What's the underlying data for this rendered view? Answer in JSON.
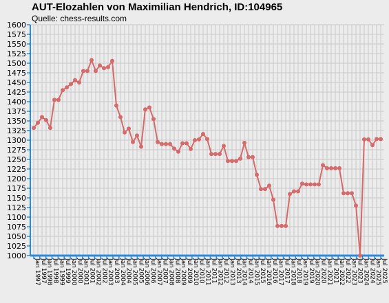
{
  "title": "AUT-Elozahlen von Maximilian Hendrich, ID:104965",
  "subtitle": "Quelle: chess-results.com",
  "colors": {
    "background": "#ececec",
    "grid": "#c8c8c8",
    "axis": "#2a8ae0",
    "series": "#d46a6a"
  },
  "chart_data": {
    "type": "line",
    "title": "AUT-Elozahlen von Maximilian Hendrich, ID:104965",
    "subtitle": "Quelle: chess-results.com",
    "xlabel": "",
    "ylabel": "",
    "ylim": [
      1000,
      1600
    ],
    "y_ticks": [
      1000,
      1025,
      1050,
      1075,
      1100,
      1125,
      1150,
      1175,
      1200,
      1225,
      1250,
      1275,
      1300,
      1325,
      1350,
      1375,
      1400,
      1425,
      1450,
      1475,
      1500,
      1525,
      1550,
      1575,
      1600
    ],
    "grid": true,
    "legend": "none",
    "x_tick_labels": [
      "Jan 1997",
      "Jul 1997",
      "Jan 1998",
      "Jul 1998",
      "Jan 1999",
      "Jul 1999",
      "Jan 2000",
      "Jul 2000",
      "Jan 2001",
      "Jul 2001",
      "Jan 2002",
      "Jul 2002",
      "Jan 2003",
      "Jul 2003",
      "Jan 2004",
      "Jul 2004",
      "Jan 2005",
      "Jul 2005",
      "Jan 2006",
      "Jul 2006",
      "Jan 2007",
      "Jul 2007",
      "Jan 2008",
      "Jul 2008",
      "Jan 2009",
      "Jul 2009",
      "Jan 2010",
      "Jul 2010",
      "Jan 2011",
      "Jul 2011",
      "Jan 2012",
      "Jul 2012",
      "Jan 2013",
      "Jul 2013",
      "Jan 2014",
      "Jul 2014",
      "Jan 2015",
      "Jul 2015",
      "Jan 2016",
      "Jul 2016",
      "Jan 2017",
      "Jul 2017",
      "Jan 2018",
      "Jul 2018",
      "Jan 2019",
      "Jul 2019",
      "Jan 2020",
      "Jul 2020",
      "Jan 2021",
      "Jul 2021",
      "Jan 2022",
      "Jul 2022",
      "Jan 2023",
      "Jul 2023",
      "Jan 2024",
      "Jul 2024",
      "Jan 2025",
      "Jul 2025"
    ],
    "series": [
      {
        "values": [
          1332,
          1345,
          1360,
          1352,
          1332,
          1405,
          1405,
          1430,
          1437,
          1446,
          1456,
          1450,
          1480,
          1480,
          1508,
          1480,
          1494,
          1487,
          1490,
          1506,
          1390,
          1360,
          1320,
          1330,
          1295,
          1312,
          1283,
          1380,
          1385,
          1355,
          1295,
          1290,
          1290,
          1290,
          1278,
          1270,
          1292,
          1292,
          1277,
          1300,
          1302,
          1316,
          1303,
          1264,
          1264,
          1264,
          1285,
          1246,
          1246,
          1246,
          1252,
          1293,
          1256,
          1256,
          1210,
          1173,
          1173,
          1182,
          1145,
          1077,
          1077,
          1077,
          1160,
          1167,
          1167,
          1187,
          1185,
          1185,
          1185,
          1185,
          1235,
          1227,
          1227,
          1227,
          1227,
          1162,
          1162,
          1162,
          1130,
          1000,
          1302,
          1302,
          1287,
          1303,
          1303
        ]
      }
    ]
  }
}
